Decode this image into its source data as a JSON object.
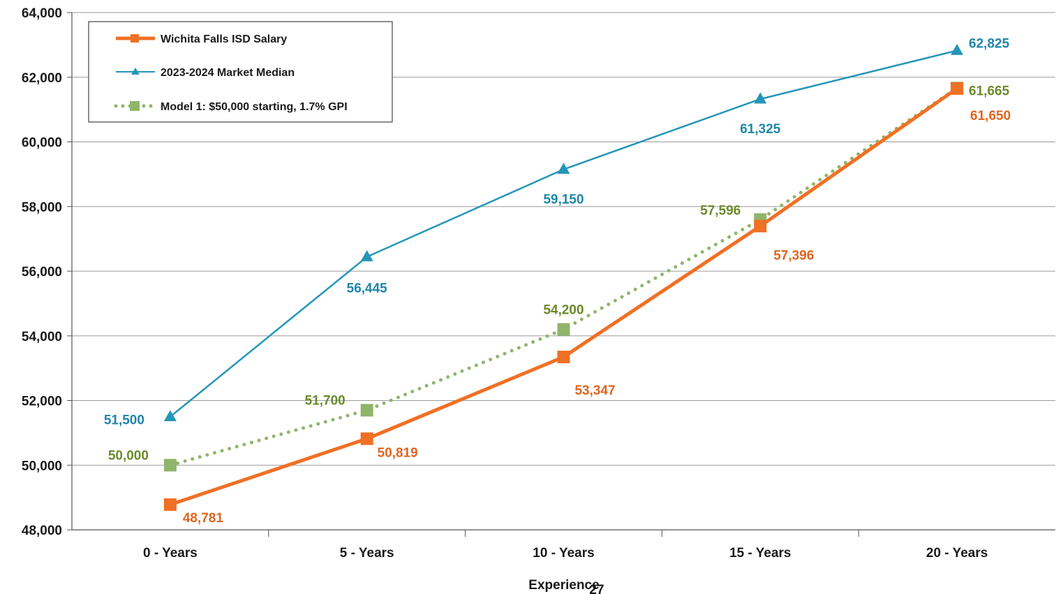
{
  "chart_data": {
    "type": "line",
    "title": "",
    "xlabel": "Experience",
    "ylabel": "",
    "categories": [
      "0 - Years",
      "5 - Years",
      "10 - Years",
      "15 - Years",
      "20 - Years"
    ],
    "ylim": [
      48000,
      64000
    ],
    "yticks": [
      48000,
      50000,
      52000,
      54000,
      56000,
      58000,
      60000,
      62000,
      64000
    ],
    "ytick_labels": [
      "48,000",
      "50,000",
      "52,000",
      "54,000",
      "56,000",
      "58,000",
      "60,000",
      "62,000",
      "64,000"
    ],
    "grid": true,
    "legend_position": "top-left",
    "series": [
      {
        "name": "Wichita Falls ISD Salary",
        "values": [
          48781,
          50819,
          53347,
          57396,
          61650
        ],
        "labels": [
          "48,781",
          "50,819",
          "53,347",
          "57,396",
          "61,650"
        ],
        "color": "#f07025",
        "label_color": "#e0651f",
        "style": "solid",
        "marker": "square"
      },
      {
        "name": "2023-2024 Market Median",
        "values": [
          51500,
          56445,
          59150,
          61325,
          62825
        ],
        "labels": [
          "51,500",
          "56,445",
          "59,150",
          "61,325",
          "62,825"
        ],
        "color": "#2596b8",
        "label_color": "#1f86a8",
        "style": "solid",
        "marker": "triangle"
      },
      {
        "name": "Model 1: $50,000 starting, 1.7% GPI",
        "values": [
          50000,
          51700,
          54200,
          57596,
          61665
        ],
        "labels": [
          "50,000",
          "51,700",
          "54,200",
          "57,596",
          "61,665"
        ],
        "color": "#8fb56b",
        "label_color": "#6b8a2a",
        "style": "dotted",
        "marker": "square"
      }
    ]
  },
  "page_number": "27"
}
